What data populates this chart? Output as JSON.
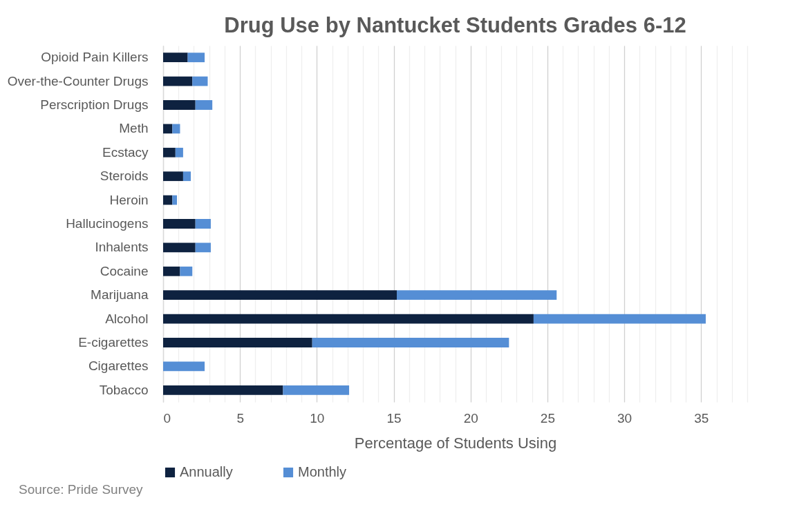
{
  "chart_data": {
    "type": "bar",
    "orientation": "horizontal",
    "stacked": true,
    "title": "Drug Use by Nantucket Students Grades 6-12",
    "xlabel": "Percentage of Students Using",
    "categories": [
      "Opioid Pain Killers",
      "Over-the-Counter Drugs",
      "Perscription Drugs",
      "Meth",
      "Ecstacy",
      "Steroids",
      "Heroin",
      "Hallucinogens",
      "Inhalents",
      "Cocaine",
      "Marijuana",
      "Alcohol",
      "E-cigarettes",
      "Cigarettes",
      "Tobacco"
    ],
    "series": [
      {
        "name": "Annually",
        "color": "#0e2240",
        "values": [
          1.6,
          1.9,
          2.1,
          0.6,
          0.8,
          1.3,
          0.6,
          2.1,
          2.1,
          1.1,
          15.2,
          24.1,
          9.7,
          0,
          7.8
        ]
      },
      {
        "name": "Monthly",
        "color": "#558ed5",
        "values": [
          1.1,
          1.0,
          1.1,
          0.5,
          0.5,
          0.5,
          0.3,
          1.0,
          1.0,
          0.8,
          10.4,
          11.2,
          12.8,
          2.7,
          4.3
        ]
      }
    ],
    "xlim": [
      0,
      38
    ],
    "xticks": [
      0,
      {
        "value": 1,
        "label": null
      },
      {
        "value": 2,
        "label": null
      },
      {
        "value": 3,
        "label": null
      },
      {
        "value": 4,
        "label": null
      },
      5,
      {
        "value": 6,
        "label": null
      },
      {
        "value": 7,
        "label": null
      },
      {
        "value": 8,
        "label": null
      },
      {
        "value": 9,
        "label": null
      },
      10,
      {
        "value": 11,
        "label": null
      },
      {
        "value": 12,
        "label": null
      },
      {
        "value": 13,
        "label": null
      },
      {
        "value": 14,
        "label": null
      },
      15,
      {
        "value": 16,
        "label": null
      },
      {
        "value": 17,
        "label": null
      },
      {
        "value": 18,
        "label": null
      },
      {
        "value": 19,
        "label": null
      },
      20,
      {
        "value": 21,
        "label": null
      },
      {
        "value": 22,
        "label": null
      },
      {
        "value": 23,
        "label": null
      },
      {
        "value": 24,
        "label": null
      },
      25,
      {
        "value": 26,
        "label": null
      },
      {
        "value": 27,
        "label": null
      },
      {
        "value": 28,
        "label": null
      },
      {
        "value": 29,
        "label": null
      },
      30,
      {
        "value": 31,
        "label": null
      },
      {
        "value": 32,
        "label": null
      },
      {
        "value": 33,
        "label": null
      },
      {
        "value": 34,
        "label": null
      },
      35,
      {
        "value": 36,
        "label": null
      },
      {
        "value": 37,
        "label": null
      },
      {
        "value": 38,
        "label": null
      }
    ],
    "grid": "x",
    "legend": "bottom",
    "annotations": [
      "Source: Pride Survey"
    ]
  }
}
